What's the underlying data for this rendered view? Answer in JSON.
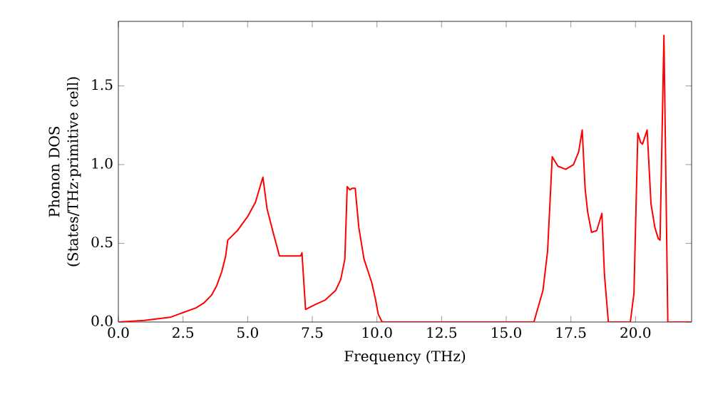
{
  "chart_data": {
    "type": "line",
    "xlabel": "Frequency (THz)",
    "ylabel": "Phonon DOS (States/THz·primitive cell)",
    "xlim": [
      0,
      22.17
    ],
    "ylim": [
      0,
      1.91
    ],
    "xticks": [
      {
        "value": 0,
        "label": "0.0"
      },
      {
        "value": 2.5,
        "label": "2.5"
      },
      {
        "value": 5,
        "label": "5.0"
      },
      {
        "value": 7.5,
        "label": "7.5"
      },
      {
        "value": 10,
        "label": "10.0"
      },
      {
        "value": 12.5,
        "label": "12.5"
      },
      {
        "value": 15,
        "label": "15.0"
      },
      {
        "value": 17.5,
        "label": "17.5"
      },
      {
        "value": 20,
        "label": "20.0"
      }
    ],
    "yticks": [
      {
        "value": 0,
        "label": "0.0"
      },
      {
        "value": 0.5,
        "label": "0.5"
      },
      {
        "value": 1,
        "label": "1.0"
      },
      {
        "value": 1.5,
        "label": "1.5"
      }
    ],
    "grid": false,
    "marker": "none",
    "line_style": "solid",
    "series": [
      {
        "color": "#ff0000",
        "x": [
          0,
          1,
          2,
          2.5,
          3,
          3.3,
          3.6,
          3.8,
          4.0,
          4.15,
          4.23,
          4.6,
          5.0,
          5.3,
          5.59,
          5.75,
          6.0,
          6.23,
          7.05,
          7.1,
          7.24,
          7.6,
          8.0,
          8.4,
          8.6,
          8.76,
          8.85,
          8.95,
          9.05,
          9.16,
          9.3,
          9.5,
          9.8,
          9.95,
          10.05,
          10.2,
          16.07,
          16.42,
          16.6,
          16.78,
          17.0,
          17.3,
          17.6,
          17.8,
          17.94,
          18.05,
          18.15,
          18.3,
          18.5,
          18.7,
          18.8,
          18.95,
          19.8,
          19.94,
          20.09,
          20.2,
          20.27,
          20.45,
          20.6,
          20.75,
          20.88,
          20.95,
          21.1,
          21.25,
          22.17
        ],
        "values": [
          0,
          0.01,
          0.03,
          0.06,
          0.09,
          0.12,
          0.17,
          0.23,
          0.32,
          0.42,
          0.52,
          0.58,
          0.67,
          0.76,
          0.92,
          0.72,
          0.56,
          0.42,
          0.42,
          0.44,
          0.08,
          0.11,
          0.14,
          0.2,
          0.27,
          0.4,
          0.86,
          0.84,
          0.85,
          0.85,
          0.6,
          0.4,
          0.25,
          0.14,
          0.05,
          0,
          0,
          0.2,
          0.45,
          1.05,
          0.99,
          0.97,
          1.0,
          1.08,
          1.22,
          0.85,
          0.7,
          0.57,
          0.58,
          0.69,
          0.3,
          0,
          0,
          0.18,
          1.2,
          1.14,
          1.13,
          1.22,
          0.75,
          0.6,
          0.53,
          0.52,
          1.82,
          0,
          0
        ]
      }
    ]
  }
}
